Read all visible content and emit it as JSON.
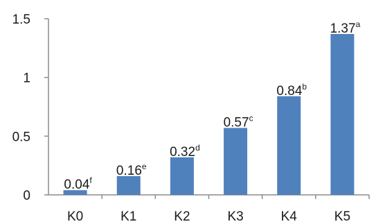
{
  "chart_data": {
    "type": "bar",
    "categories": [
      "K0",
      "K1",
      "K2",
      "K3",
      "K4",
      "K5"
    ],
    "values": [
      0.04,
      0.16,
      0.32,
      0.57,
      0.84,
      1.37
    ],
    "data_labels": [
      "0.04",
      "0.16",
      "0.32",
      "0.57",
      "0.84",
      "1.37"
    ],
    "superscripts": [
      "f",
      "e",
      "d",
      "c",
      "b",
      "a"
    ],
    "ylim": [
      0,
      1.5
    ],
    "yticks": [
      0,
      0.5,
      1,
      1.5
    ],
    "ytick_labels": [
      "0",
      "0.5",
      "1",
      "1.5"
    ],
    "title": "",
    "xlabel": "",
    "ylabel": "",
    "grid": false,
    "legend": "none",
    "bar_color": "#4f81bd"
  }
}
